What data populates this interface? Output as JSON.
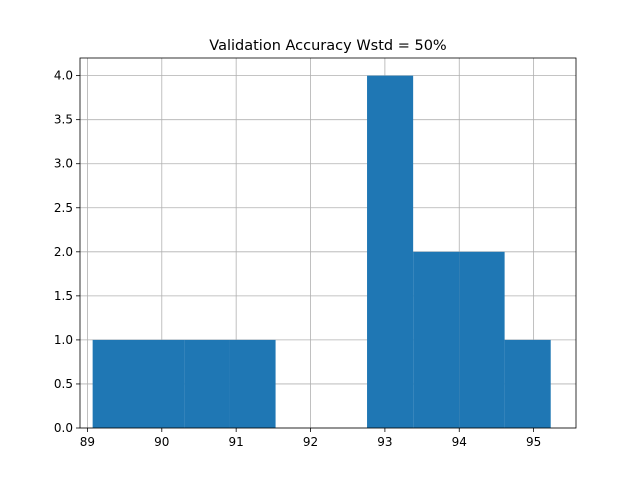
{
  "chart_data": {
    "type": "bar",
    "title": "Validation Accuracy Wstd = 50%",
    "xlabel": "",
    "ylabel": "",
    "xlim": [
      88.9,
      95.57
    ],
    "ylim": [
      0,
      4.2
    ],
    "x_ticks": [
      89,
      90,
      91,
      92,
      93,
      94,
      95
    ],
    "x_tick_labels": [
      "89",
      "90",
      "91",
      "92",
      "93",
      "94",
      "95"
    ],
    "y_ticks": [
      0,
      0.5,
      1,
      1.5,
      2,
      2.5,
      3,
      3.5,
      4
    ],
    "y_tick_labels": [
      "0.0",
      "0.5",
      "1.0",
      "1.5",
      "2.0",
      "2.5",
      "3.0",
      "3.5",
      "4.0"
    ],
    "grid": true,
    "bar_color": "#1f77b4",
    "bins": [
      {
        "x0": 89.07,
        "x1": 89.68,
        "count": 1
      },
      {
        "x0": 89.68,
        "x1": 90.3,
        "count": 1
      },
      {
        "x0": 90.3,
        "x1": 90.91,
        "count": 1
      },
      {
        "x0": 90.91,
        "x1": 91.53,
        "count": 1
      },
      {
        "x0": 91.53,
        "x1": 92.15,
        "count": 0
      },
      {
        "x0": 92.15,
        "x1": 92.76,
        "count": 0
      },
      {
        "x0": 92.76,
        "x1": 93.38,
        "count": 4
      },
      {
        "x0": 93.38,
        "x1": 94.0,
        "count": 2
      },
      {
        "x0": 94.0,
        "x1": 94.61,
        "count": 2
      },
      {
        "x0": 94.61,
        "x1": 95.23,
        "count": 1
      }
    ]
  }
}
